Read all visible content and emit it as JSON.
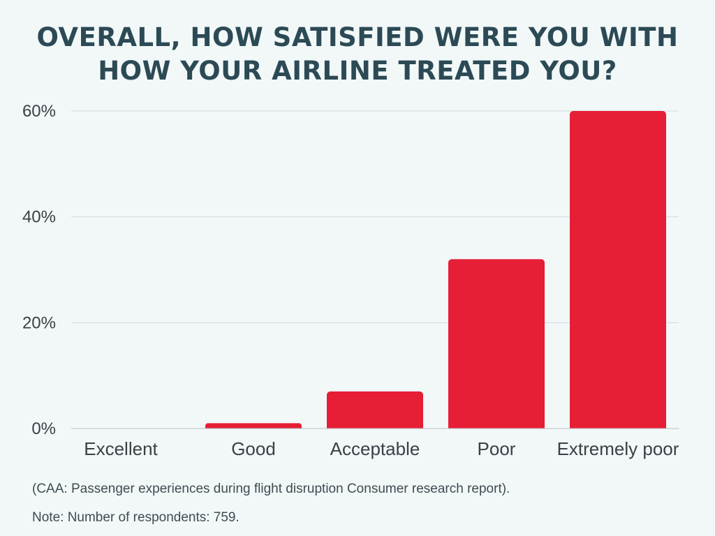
{
  "chart_data": {
    "type": "bar",
    "title_lines": [
      "OVERALL, HOW SATISFIED WERE YOU WITH",
      "HOW YOUR AIRLINE TREATED YOU?"
    ],
    "categories": [
      "Excellent",
      "Good",
      "Acceptable",
      "Poor",
      "Extremely poor"
    ],
    "values": [
      0,
      1,
      7,
      32,
      60
    ],
    "value_unit": "%",
    "ylim": [
      0,
      60
    ],
    "yticks": [
      "0%",
      "20%",
      "40%",
      "60%"
    ],
    "grid": true,
    "bar_color": "#e61e36",
    "xlabel": "",
    "ylabel": ""
  },
  "footer": {
    "source": "(CAA: Passenger experiences during flight disruption Consumer research report).",
    "note": "Note: Number of respondents: 759."
  }
}
